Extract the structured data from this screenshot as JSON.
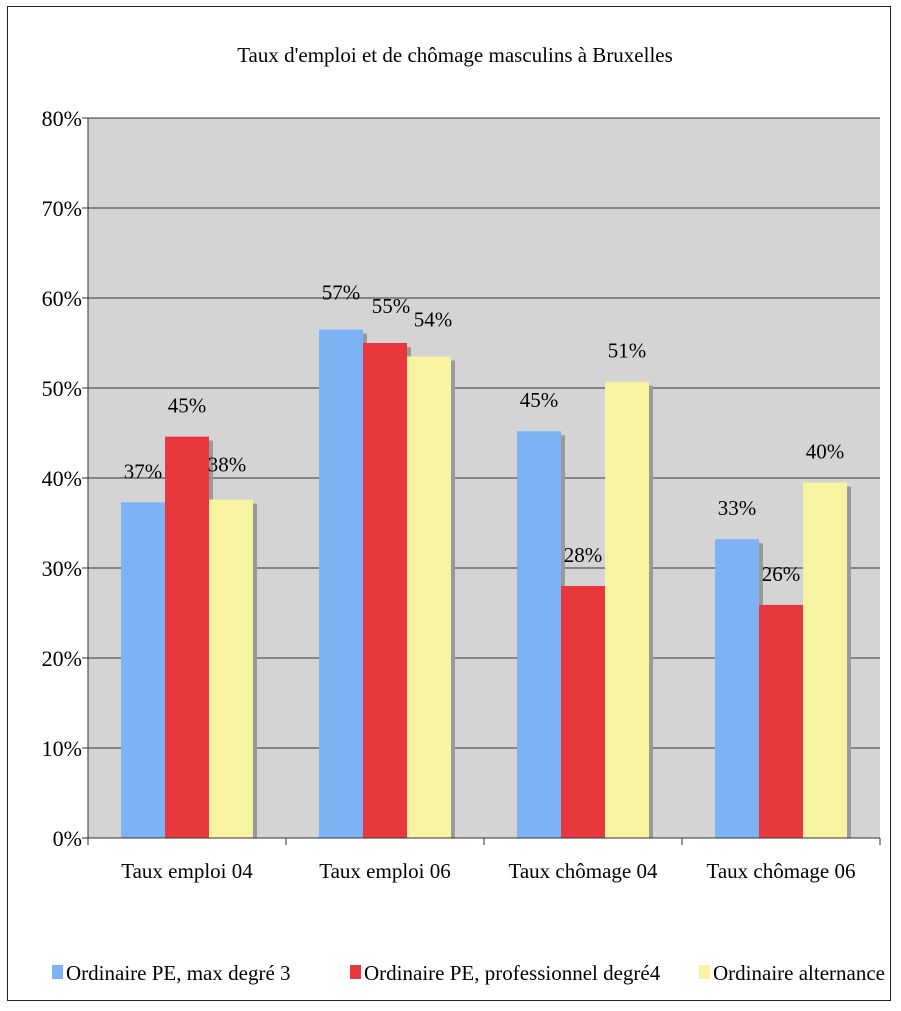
{
  "chart_data": {
    "type": "bar",
    "title": "Taux d'emploi et de chômage masculins à Bruxelles",
    "xlabel": "",
    "ylabel": "",
    "ylim": [
      0,
      0.8
    ],
    "yticks": [
      0,
      0.1,
      0.2,
      0.3,
      0.4,
      0.5,
      0.6,
      0.7,
      0.8
    ],
    "ytick_labels": [
      "0%",
      "10%",
      "20%",
      "30%",
      "40%",
      "50%",
      "60%",
      "70%",
      "80%"
    ],
    "grid": true,
    "legend_position": "bottom",
    "categories": [
      "Taux emploi  04",
      "Taux emploi  06",
      "Taux chômage 04",
      "Taux chômage 06"
    ],
    "series": [
      {
        "name": "Ordinaire PE, max degré 3",
        "color": "#7db3f5",
        "values": [
          0.373,
          0.565,
          0.452,
          0.332
        ],
        "labels": [
          "37%",
          "57%",
          "45%",
          "33%"
        ]
      },
      {
        "name": "Ordinaire PE, professionnel degré4",
        "color": "#e8383e",
        "values": [
          0.446,
          0.55,
          0.28,
          0.259
        ],
        "labels": [
          "45%",
          "55%",
          "28%",
          "26%"
        ]
      },
      {
        "name": "Ordinaire alternance",
        "color": "#f8f3a0",
        "values": [
          0.376,
          0.535,
          0.507,
          0.395
        ],
        "labels": [
          "38%",
          "54%",
          "51%",
          "40%"
        ]
      }
    ],
    "plot_background": "#d4d4d4"
  }
}
